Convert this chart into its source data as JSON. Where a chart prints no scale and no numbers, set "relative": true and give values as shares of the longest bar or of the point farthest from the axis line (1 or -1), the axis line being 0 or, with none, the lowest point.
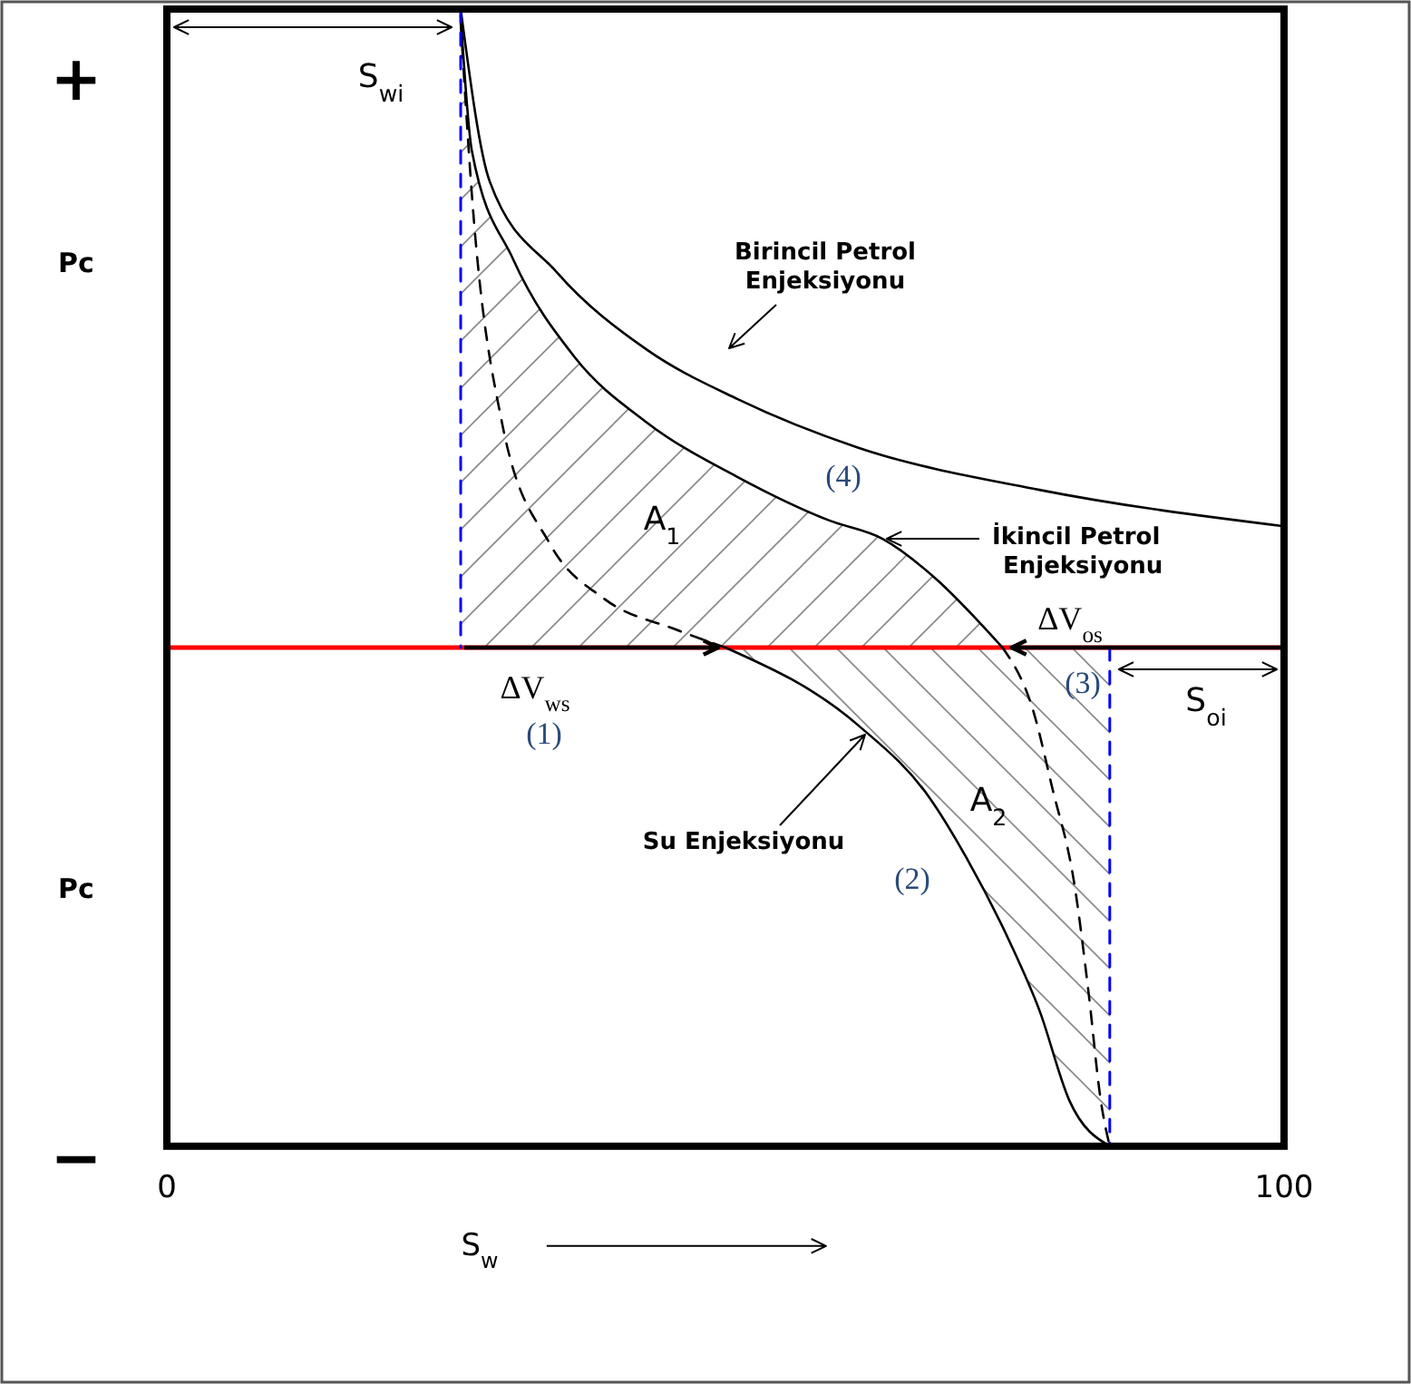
{
  "chart_data": {
    "type": "line",
    "relative": true,
    "xlabel": "S$_{w}$",
    "xlim": [
      0,
      100
    ],
    "xticks": [
      0,
      100
    ],
    "series": [
      {
        "color": "#000000",
        "line_style": "solid",
        "x": [
          26.3,
          28.9,
          34.9,
          43,
          51.1,
          61.9,
          78.1,
          100
        ],
        "values": [
          1,
          0.73,
          0.588,
          0.466,
          0.389,
          0.313,
          0.247,
          0.19
        ]
      },
      {
        "color": "#000000",
        "line_style": "solid",
        "x": [
          26.3,
          27.3,
          31,
          36.5,
          43,
          51.1,
          59.3,
          64.1,
          69,
          72.7,
          74.8
        ],
        "values": [
          0.99,
          0.778,
          0.608,
          0.455,
          0.352,
          0.267,
          0.199,
          0.17,
          0.105,
          0.04,
          0
        ]
      },
      {
        "color": "#000000",
        "line_style": "dashed",
        "x": [
          26.3,
          27.3,
          30,
          34.3,
          39.1,
          45.6,
          50
        ],
        "values": [
          0.98,
          0.71,
          0.352,
          0.162,
          0.077,
          0.028,
          0
        ]
      },
      {
        "color": "#000000",
        "line_style": "solid",
        "x": [
          50,
          61.9,
          68.3,
          71.6,
          75.5,
          78.1,
          80.8,
          84.4
        ],
        "values": [
          0,
          -0.122,
          -0.236,
          -0.33,
          -0.463,
          -0.568,
          -0.71,
          -0.781
        ]
      },
      {
        "color": "#000000",
        "line_style": "dashed",
        "x": [
          74.8,
          77.6,
          79.2,
          81.3,
          82.5,
          83.6,
          84.4
        ],
        "values": [
          0,
          -0.102,
          -0.216,
          -0.378,
          -0.54,
          -0.71,
          -0.781
        ]
      },
      {
        "color": "#0000ff",
        "line_style": "dashed",
        "x": [
          26.3,
          26.3
        ],
        "values": [
          1,
          0
        ]
      },
      {
        "color": "#0000ff",
        "line_style": "dashed",
        "x": [
          84.4,
          84.4
        ],
        "values": [
          0,
          -0.781
        ]
      }
    ],
    "ref_lines": [
      {
        "axis": "y",
        "value": 0,
        "color": "#ff0000"
      }
    ],
    "annotations": [
      "Birincil Petrol Enjeksiyonu",
      "İkincil Petrol Enjeksiyonu",
      "Su Enjeksiyonu",
      "A$_{1}$",
      "A$_{2}$",
      "ΔV$_{ws}$",
      "(1)",
      "ΔV$_{os}$",
      "(3)",
      "(2)",
      "(4)",
      "S$_{wi}$",
      "S$_{oi}$",
      "+",
      "Pc",
      "Pc",
      "−"
    ]
  }
}
